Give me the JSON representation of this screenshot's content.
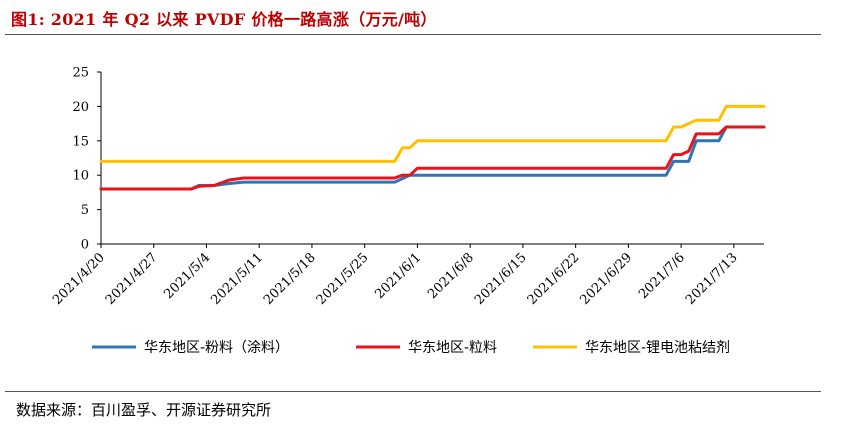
{
  "header": {
    "title": "图1:  2021 年 Q2 以来 PVDF 价格一路高涨（万元/吨）"
  },
  "footer": {
    "source": "数据来源：百川盈孚、开源证券研究所"
  },
  "chart_data": {
    "type": "line",
    "title": "图1:  2021 年 Q2 以来 PVDF 价格一路高涨（万元/吨）",
    "xlabel": "",
    "ylabel": "",
    "ylim": [
      0,
      25
    ],
    "yticks": [
      0,
      5,
      10,
      15,
      20,
      25
    ],
    "x_tick_labels": [
      "2021/4/20",
      "2021/4/27",
      "2021/5/4",
      "2021/5/11",
      "2021/5/18",
      "2021/5/25",
      "2021/6/1",
      "2021/6/8",
      "2021/6/15",
      "2021/6/22",
      "2021/6/29",
      "2021/7/6",
      "2021/7/13"
    ],
    "grid": false,
    "legend": "bottom",
    "x_start": "2021-04-20",
    "x_end": "2021-07-17",
    "series": [
      {
        "name": "华东地区-粉料（涂料）",
        "color": "#2e75b6",
        "points": [
          [
            "2021-04-20",
            8
          ],
          [
            "2021-05-02",
            8
          ],
          [
            "2021-05-03",
            8.5
          ],
          [
            "2021-05-05",
            8.5
          ],
          [
            "2021-05-07",
            8.8
          ],
          [
            "2021-05-09",
            9
          ],
          [
            "2021-05-29",
            9
          ],
          [
            "2021-05-30",
            9.5
          ],
          [
            "2021-05-31",
            10
          ],
          [
            "2021-07-04",
            10
          ],
          [
            "2021-07-05",
            12
          ],
          [
            "2021-07-07",
            12
          ],
          [
            "2021-07-08",
            15
          ],
          [
            "2021-07-11",
            15
          ],
          [
            "2021-07-12",
            17
          ],
          [
            "2021-07-17",
            17
          ]
        ]
      },
      {
        "name": "华东地区-粒料",
        "color": "#e8131b",
        "points": [
          [
            "2021-04-20",
            8
          ],
          [
            "2021-05-02",
            8
          ],
          [
            "2021-05-03",
            8.4
          ],
          [
            "2021-05-05",
            8.5
          ],
          [
            "2021-05-07",
            9.3
          ],
          [
            "2021-05-09",
            9.6
          ],
          [
            "2021-05-29",
            9.6
          ],
          [
            "2021-05-30",
            10
          ],
          [
            "2021-05-31",
            10
          ],
          [
            "2021-06-01",
            11
          ],
          [
            "2021-07-04",
            11
          ],
          [
            "2021-07-05",
            13
          ],
          [
            "2021-07-06",
            13
          ],
          [
            "2021-07-07",
            13.5
          ],
          [
            "2021-07-08",
            16
          ],
          [
            "2021-07-11",
            16
          ],
          [
            "2021-07-12",
            17
          ],
          [
            "2021-07-17",
            17
          ]
        ]
      },
      {
        "name": "华东地区-锂电池粘结剂",
        "color": "#ffc000",
        "points": [
          [
            "2021-04-20",
            12
          ],
          [
            "2021-05-29",
            12
          ],
          [
            "2021-05-30",
            14
          ],
          [
            "2021-05-31",
            14
          ],
          [
            "2021-06-01",
            15
          ],
          [
            "2021-07-04",
            15
          ],
          [
            "2021-07-05",
            17
          ],
          [
            "2021-07-06",
            17
          ],
          [
            "2021-07-07",
            17.5
          ],
          [
            "2021-07-08",
            18
          ],
          [
            "2021-07-11",
            18
          ],
          [
            "2021-07-12",
            20
          ],
          [
            "2021-07-17",
            20
          ]
        ]
      }
    ]
  }
}
